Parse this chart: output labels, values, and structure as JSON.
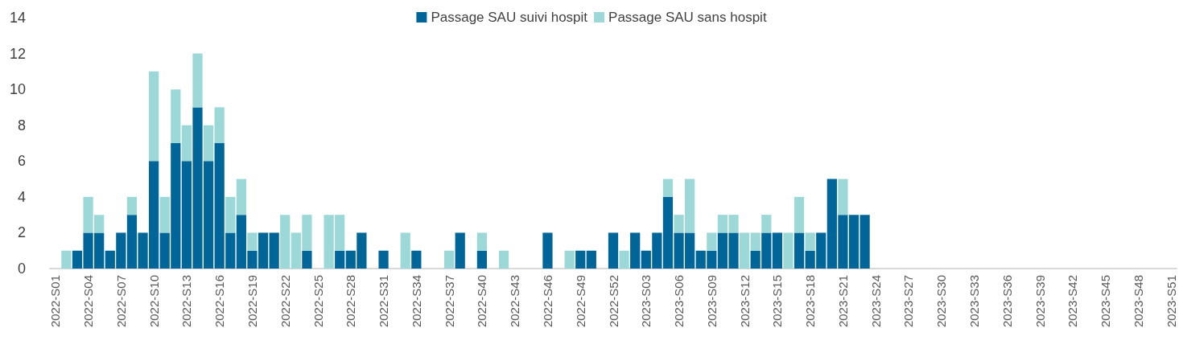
{
  "chart_data": {
    "type": "bar",
    "stacked": true,
    "categories": [
      "2022-S01",
      null,
      null,
      "2022-S04",
      null,
      null,
      "2022-S07",
      null,
      null,
      "2022-S10",
      null,
      null,
      "2022-S13",
      null,
      null,
      "2022-S16",
      null,
      null,
      "2022-S19",
      null,
      null,
      "2022-S22",
      null,
      null,
      "2022-S25",
      null,
      null,
      "2022-S28",
      null,
      null,
      "2022-S31",
      null,
      null,
      "2022-S34",
      null,
      null,
      "2022-S37",
      null,
      null,
      "2022-S40",
      null,
      null,
      "2022-S43",
      null,
      null,
      "2022-S46",
      null,
      null,
      "2022-S49",
      null,
      null,
      "2022-S52",
      null,
      null,
      "2023-S03",
      null,
      null,
      "2023-S06",
      null,
      null,
      "2023-S09",
      null,
      null,
      "2023-S12",
      null,
      null,
      "2023-S15",
      null,
      null,
      "2023-S18",
      null,
      null,
      "2023-S21",
      null,
      null,
      "2023-S24",
      null,
      null,
      "2023-S27",
      null,
      null,
      "2023-S30",
      null,
      null,
      "2023-S33",
      null,
      null,
      "2023-S36",
      null,
      null,
      "2023-S39",
      null,
      null,
      "2023-S42",
      null,
      null,
      "2023-S45",
      null,
      null,
      "2023-S48",
      null,
      null,
      "2023-S51"
    ],
    "series": [
      {
        "name": "Passage SAU suivi hospit",
        "color": "#006699",
        "values": [
          0,
          0,
          1,
          2,
          2,
          1,
          2,
          3,
          2,
          6,
          2,
          7,
          6,
          9,
          6,
          7,
          2,
          3,
          1,
          2,
          2,
          0,
          0,
          1,
          0,
          0,
          1,
          1,
          2,
          0,
          1,
          0,
          0,
          1,
          0,
          0,
          0,
          2,
          0,
          1,
          0,
          0,
          0,
          0,
          0,
          2,
          0,
          0,
          1,
          1,
          0,
          2,
          0,
          2,
          1,
          2,
          4,
          2,
          2,
          1,
          1,
          2,
          2,
          0,
          1,
          2,
          2,
          0,
          2,
          1,
          2,
          5,
          3,
          3,
          3,
          null,
          null,
          null,
          null,
          null,
          null,
          null,
          null,
          null,
          null,
          null,
          null,
          null,
          null,
          null,
          null,
          null,
          null,
          null,
          null,
          null,
          null,
          null,
          null,
          null,
          null,
          null,
          null
        ]
      },
      {
        "name": "Passage SAU sans hospit",
        "color": "#9dd8d8",
        "values": [
          0,
          1,
          0,
          2,
          1,
          0,
          0,
          1,
          0,
          5,
          2,
          3,
          2,
          3,
          2,
          2,
          2,
          2,
          1,
          0,
          0,
          3,
          2,
          2,
          0,
          3,
          2,
          0,
          0,
          0,
          0,
          0,
          2,
          0,
          0,
          0,
          1,
          0,
          0,
          1,
          0,
          1,
          0,
          0,
          0,
          0,
          0,
          1,
          0,
          0,
          0,
          0,
          1,
          0,
          0,
          0,
          1,
          1,
          3,
          0,
          1,
          1,
          1,
          2,
          1,
          1,
          0,
          2,
          2,
          1,
          0,
          0,
          2,
          0,
          0,
          null,
          null,
          null,
          null,
          null,
          null,
          null,
          null,
          null,
          null,
          null,
          null,
          null,
          null,
          null,
          null,
          null,
          null,
          null,
          null,
          null,
          null,
          null,
          null,
          null,
          null,
          null,
          null
        ]
      }
    ],
    "ylim": [
      0,
      14
    ],
    "yticks": [
      0,
      2,
      4,
      6,
      8,
      10,
      12,
      14
    ],
    "grid": false,
    "legend": "top"
  }
}
